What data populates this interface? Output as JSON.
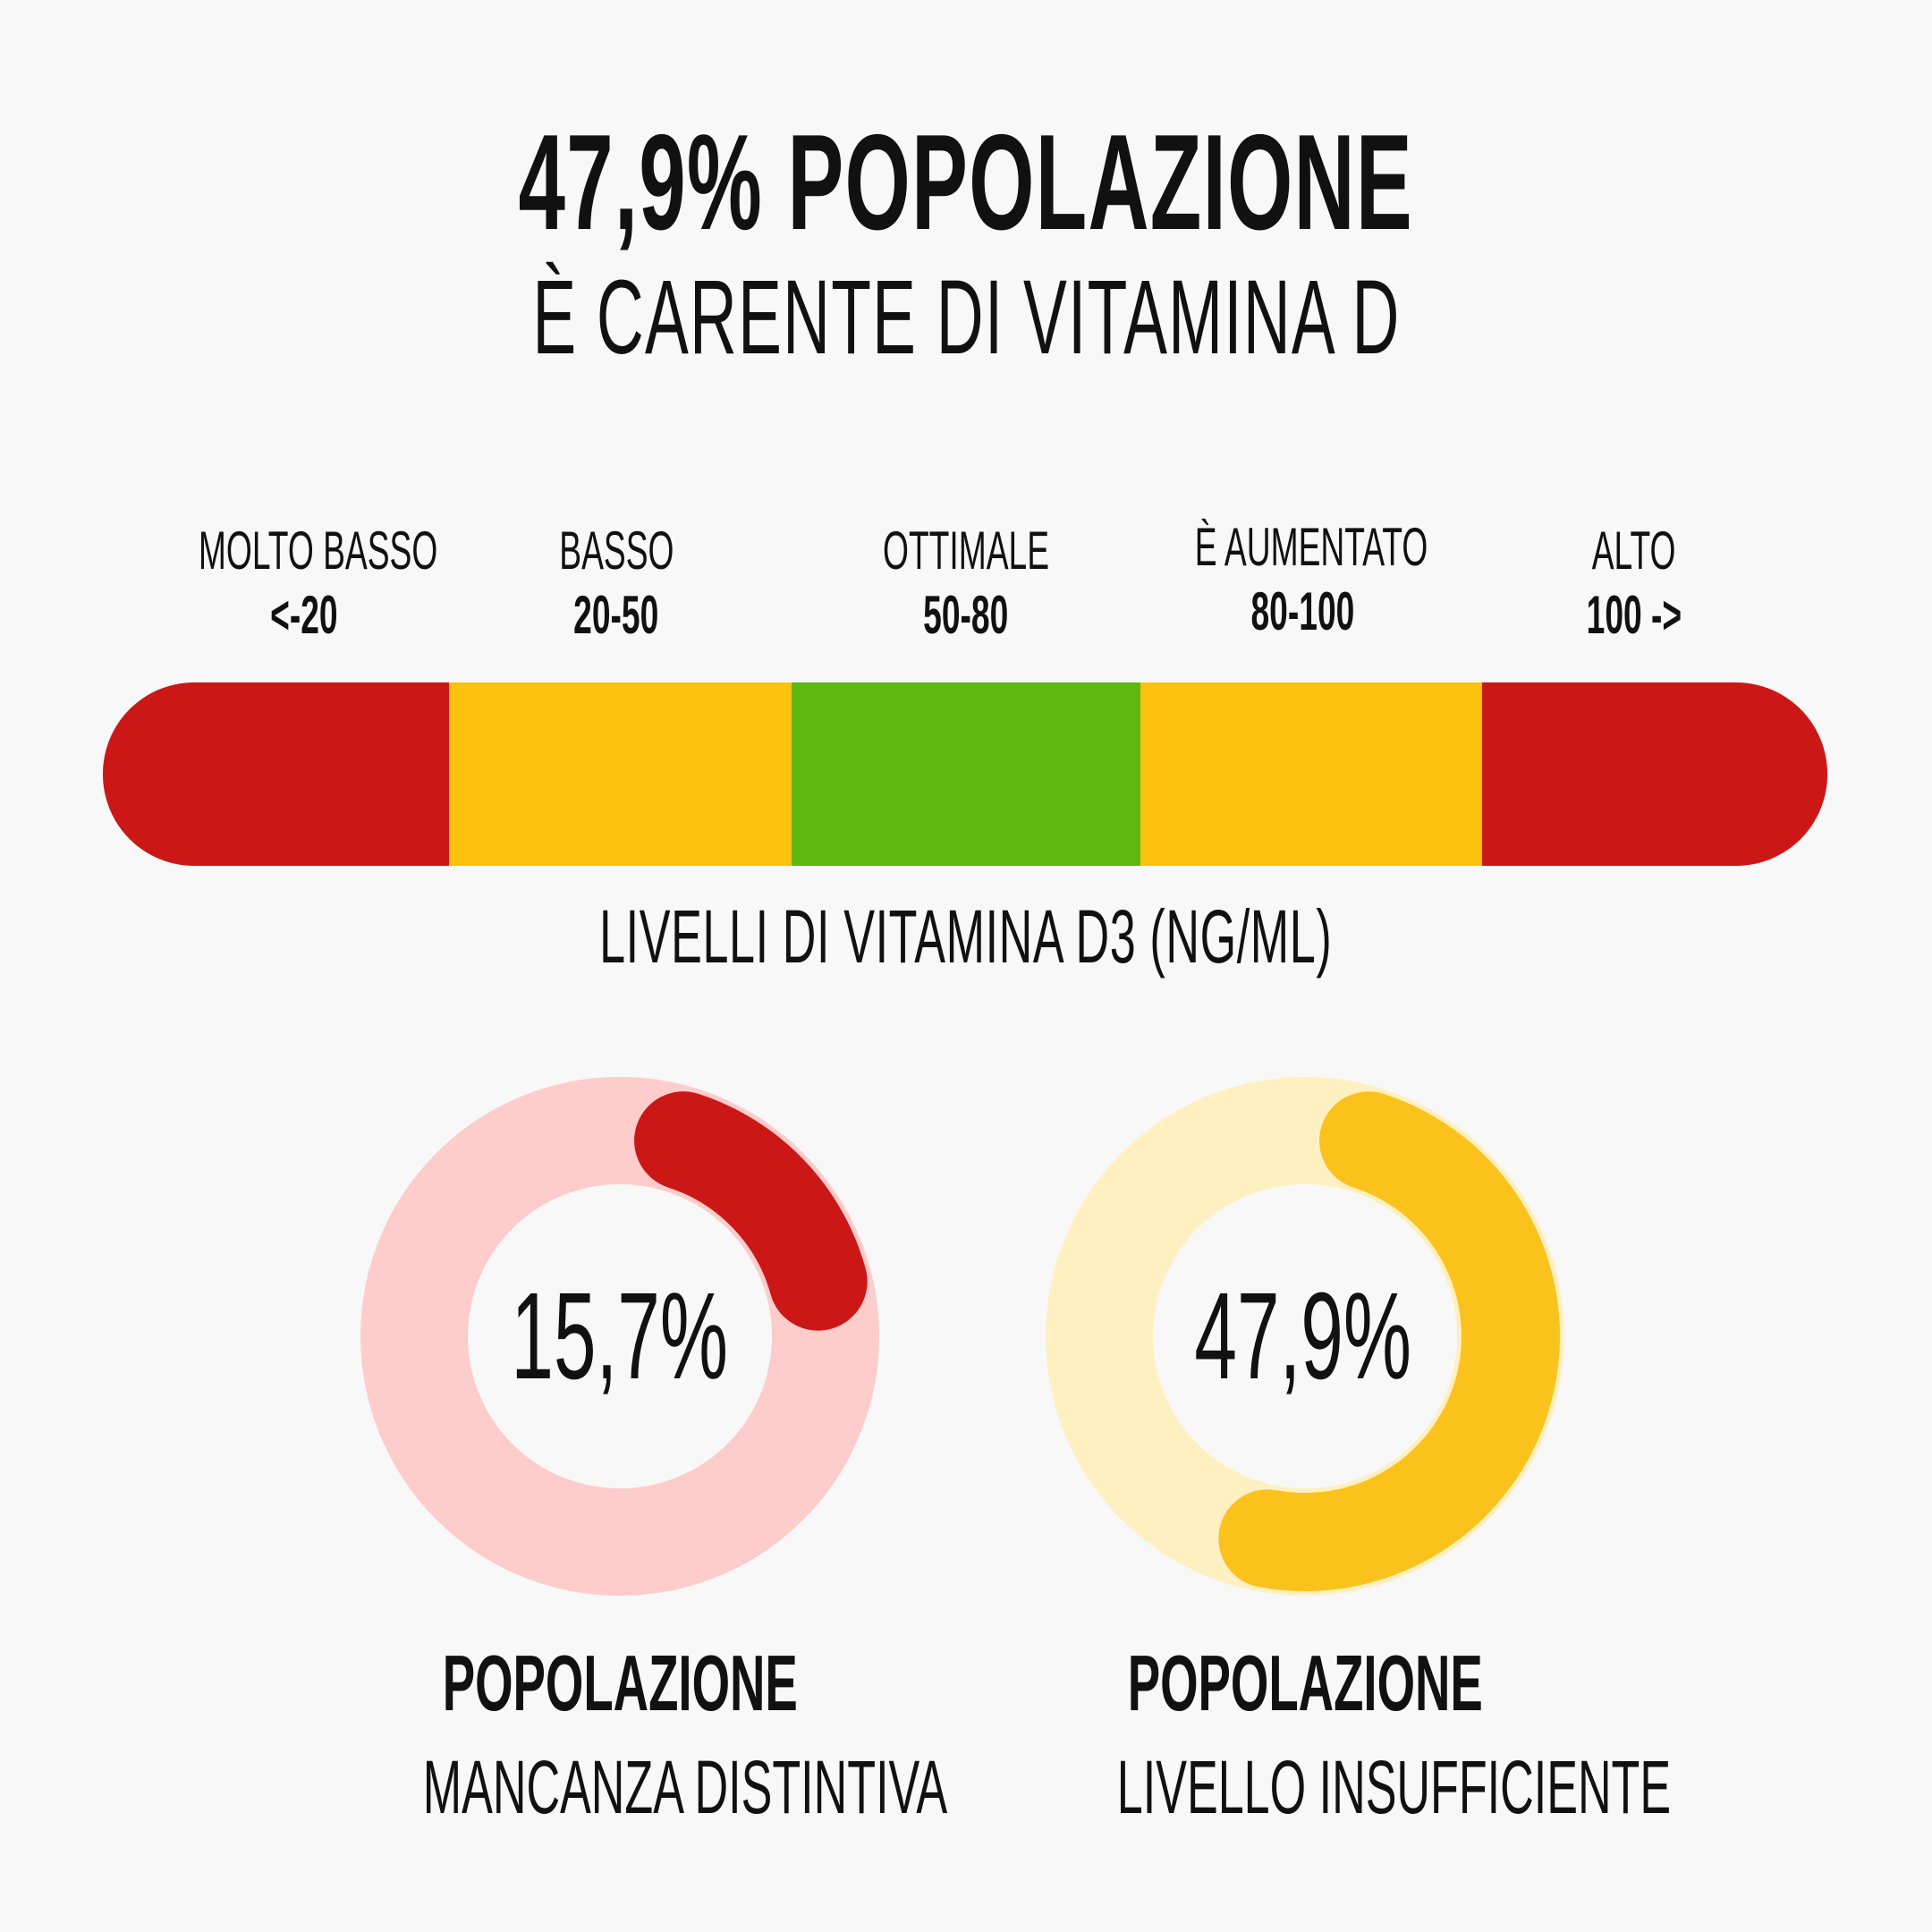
{
  "header": {
    "title": "47,9% POPOLAZIONE",
    "subtitle": "È CARENTE DI VITAMINA D"
  },
  "chart_data": [
    {
      "type": "bar",
      "title": "LIVELLI DI VITAMINA D3 (NG/ML)",
      "categories": [
        "MOLTO BASSO",
        "BASSO",
        "OTTIMALE",
        "È AUMENTATO",
        "ALTO"
      ],
      "ranges": [
        "<-20",
        "20-50",
        "50-80",
        "80-100",
        "100 ->"
      ],
      "colors": [
        "#cc1717",
        "#fdc20b",
        "#5fb80f",
        "#fdc20b",
        "#cc1717"
      ]
    },
    {
      "type": "pie",
      "value": 15.7,
      "value_label": "15,7%",
      "label_title": "POPOLAZIONE",
      "label_subtitle": "MANCANZA DISTINTIVA",
      "colors": {
        "track": "#fecccb",
        "arc": "#cc1717"
      }
    },
    {
      "type": "pie",
      "value": 47.9,
      "value_label": "47,9%",
      "label_title": "POPOLAZIONE",
      "label_subtitle": "LIVELLO INSUFFICIENTE",
      "colors": {
        "track": "#fff0c2",
        "arc": "#fbc21b"
      }
    }
  ]
}
